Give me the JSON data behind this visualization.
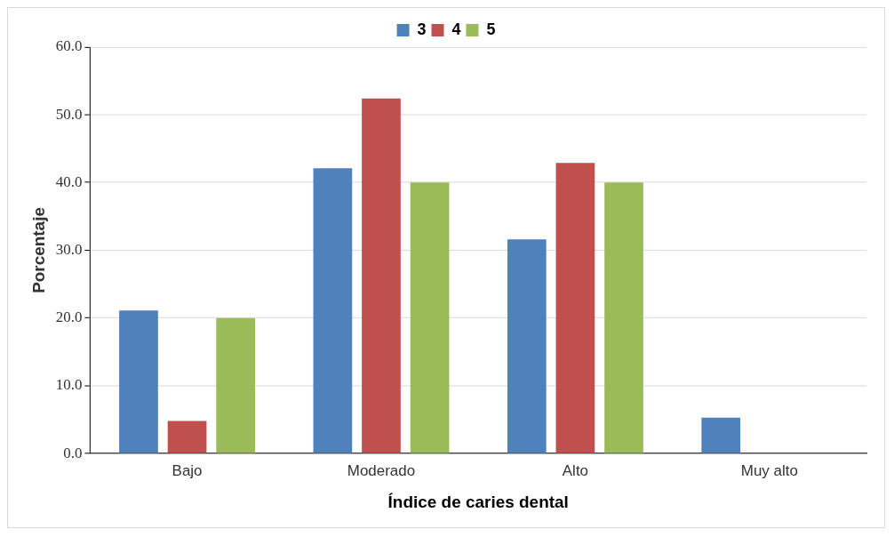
{
  "chart_data": {
    "type": "bar",
    "xlabel": "Índice de caries dental",
    "ylabel": "Porcentaje",
    "categories": [
      "Bajo",
      "Moderado",
      "Alto",
      "Muy alto"
    ],
    "series": [
      {
        "name": "3",
        "color": "#4f81bd",
        "values": [
          21.1,
          42.1,
          31.6,
          5.3
        ]
      },
      {
        "name": "4",
        "color": "#c0504d",
        "values": [
          4.8,
          52.4,
          42.9,
          0
        ]
      },
      {
        "name": "5",
        "color": "#9bbb59",
        "values": [
          20.0,
          40.0,
          40.0,
          0
        ]
      }
    ],
    "ylim": [
      0,
      60
    ],
    "yticks": [
      {
        "value": 0,
        "label": "0.0"
      },
      {
        "value": 10,
        "label": "10.0"
      },
      {
        "value": 20,
        "label": "20.0"
      },
      {
        "value": 30,
        "label": "30.0"
      },
      {
        "value": 40,
        "label": "40.0"
      },
      {
        "value": 50,
        "label": "50.0"
      },
      {
        "value": 60,
        "label": "60.0"
      }
    ],
    "grid": "y",
    "legend": "top"
  }
}
